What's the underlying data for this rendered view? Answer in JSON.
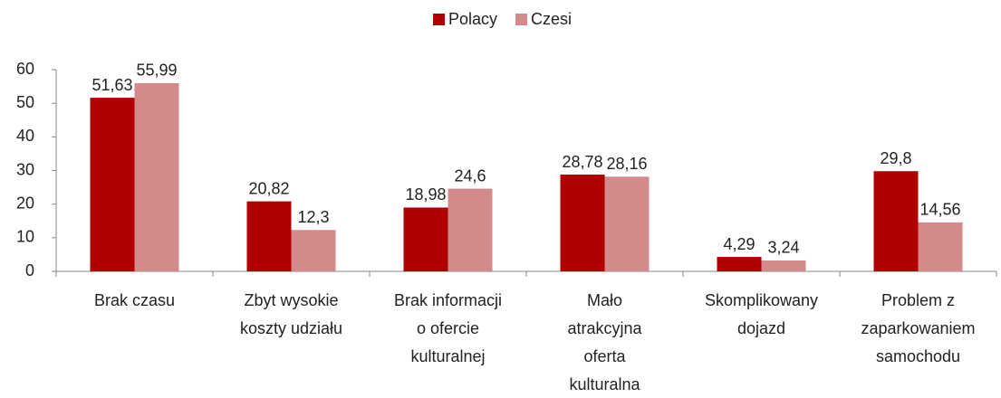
{
  "chart_data": {
    "type": "bar",
    "categories": [
      "Brak czasu",
      "Zbyt wysokie\nkoszty udziału",
      "Brak informacji\no ofercie\nkulturalnej",
      "Mało\natrakcyjna\noferta\nkulturalna",
      "Skomplikowany\ndojazd",
      "Problem z\nzaparkowaniem\nsamochodu"
    ],
    "series": [
      {
        "name": "Polacy",
        "color": "#b00000",
        "values": [
          51.63,
          20.82,
          18.98,
          28.78,
          4.29,
          29.8
        ],
        "value_labels": [
          "51,63",
          "20,82",
          "18,98",
          "28,78",
          "4,29",
          "29,8"
        ]
      },
      {
        "name": "Czesi",
        "color": "#d48a8a",
        "values": [
          55.99,
          12.3,
          24.6,
          28.16,
          3.24,
          14.56
        ],
        "value_labels": [
          "55,99",
          "12,3",
          "24,6",
          "28,16",
          "3,24",
          "14,56"
        ]
      }
    ],
    "ylim": [
      0,
      60
    ],
    "yticks": [
      0,
      10,
      20,
      30,
      40,
      50,
      60
    ],
    "grid": false,
    "legend": "top"
  }
}
